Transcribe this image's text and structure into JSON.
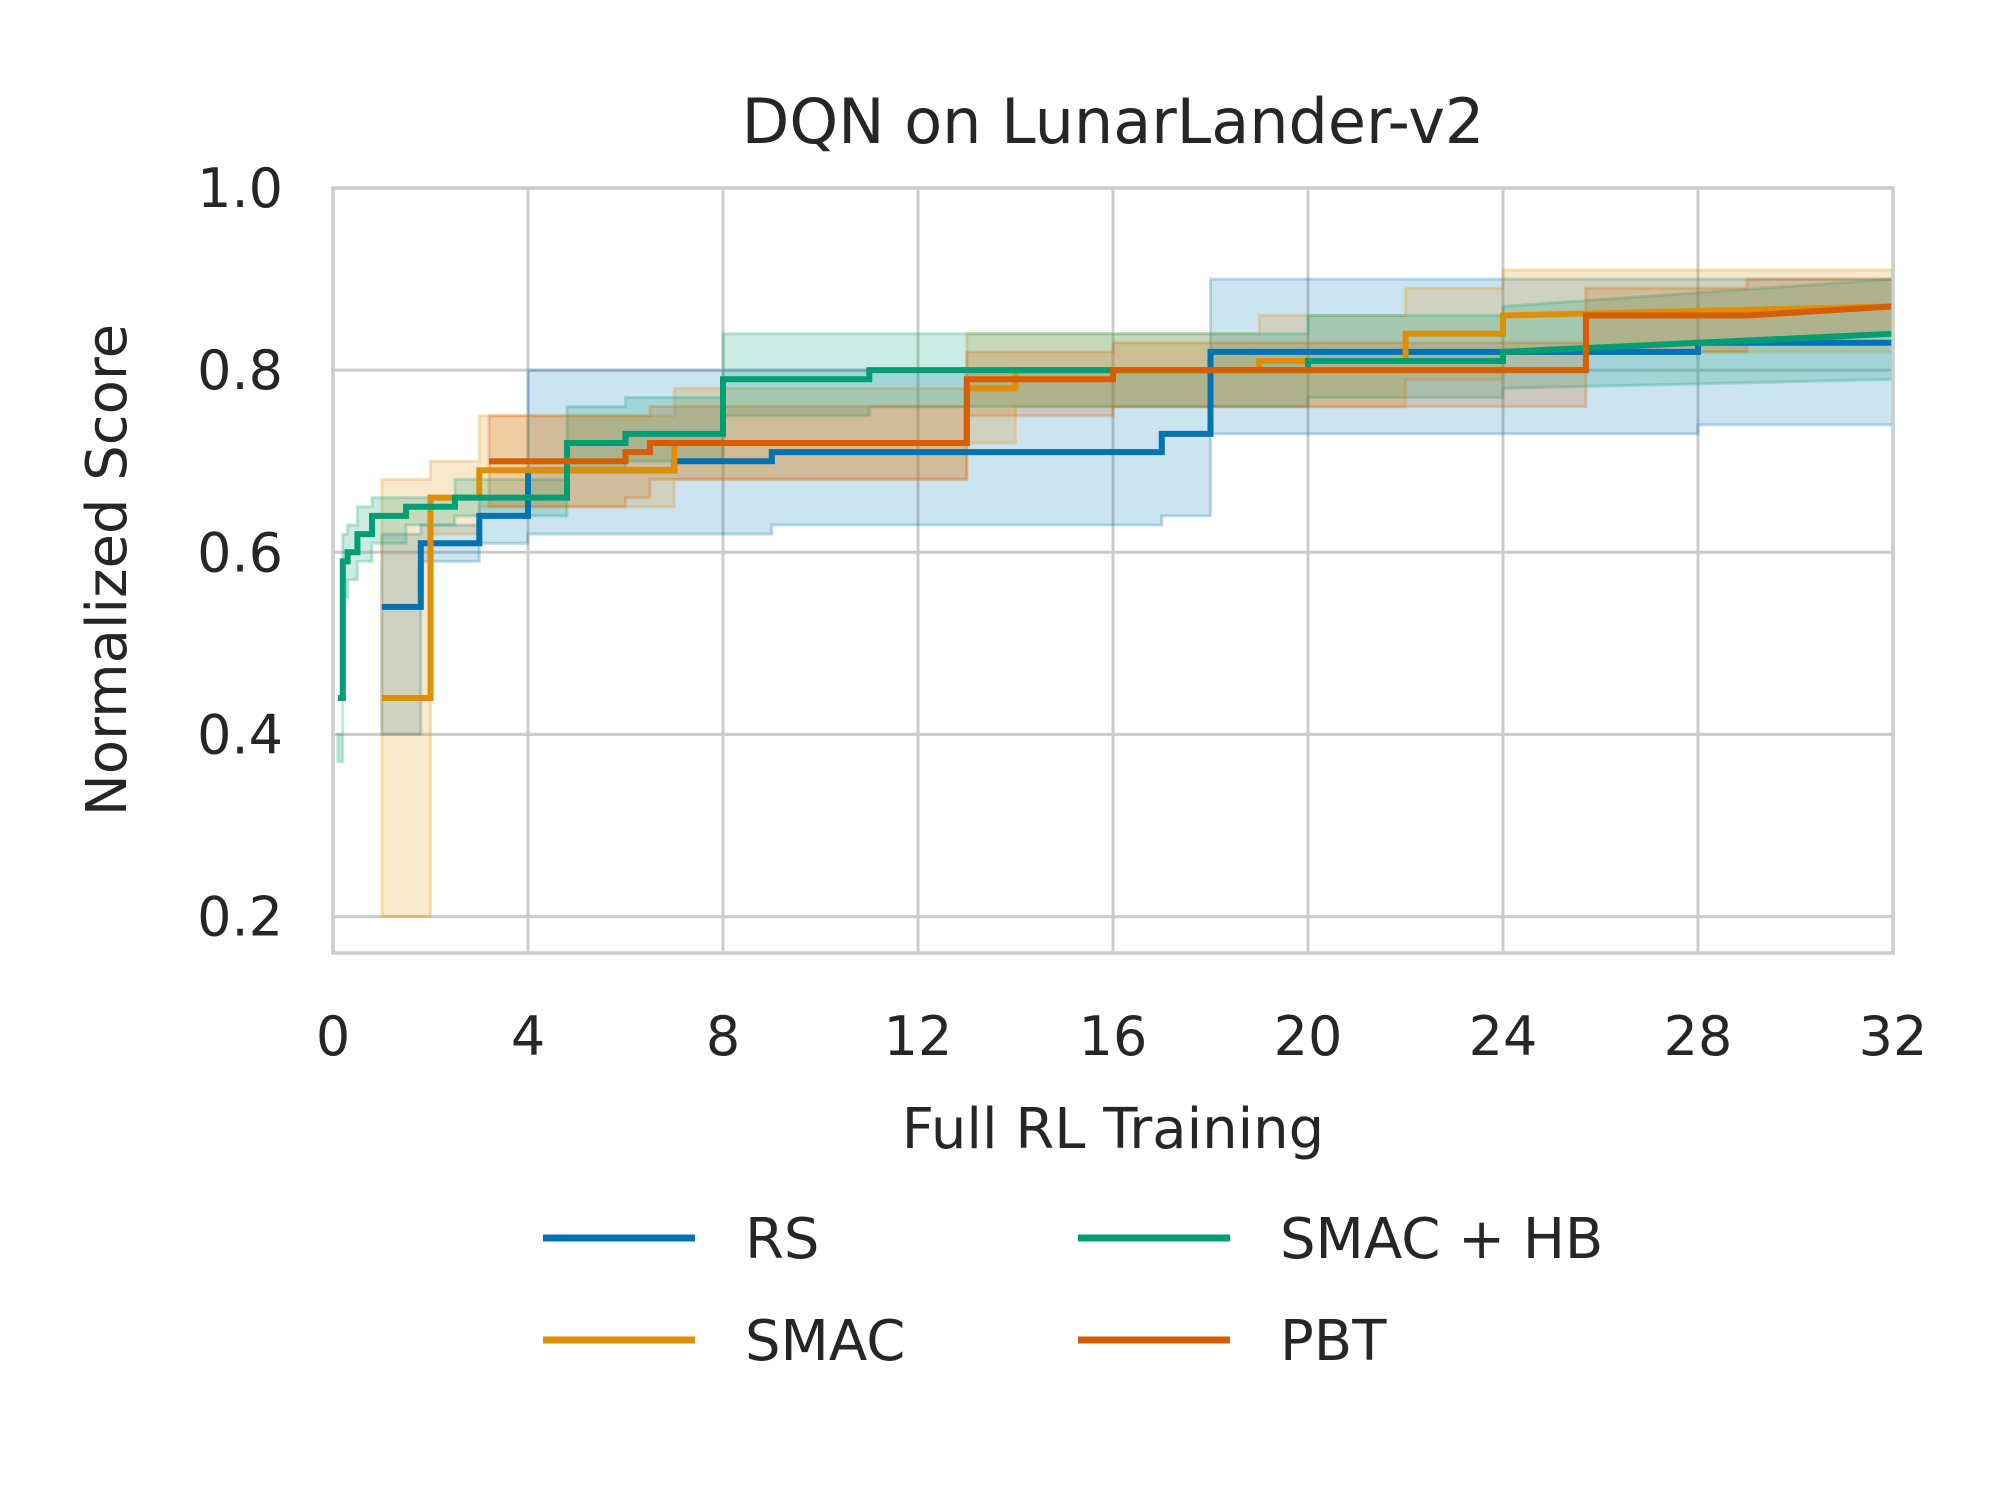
{
  "chart_data": {
    "type": "line",
    "title": "DQN on LunarLander-v2",
    "xlabel": "Full RL Training",
    "ylabel": "Normalized Score",
    "xlim": [
      0,
      32
    ],
    "ylim": [
      0.16,
      1.0
    ],
    "xticks": [
      0,
      4,
      8,
      12,
      16,
      20,
      24,
      28,
      32
    ],
    "xtick_labels": [
      "0",
      "4",
      "8",
      "12",
      "16",
      "20",
      "24",
      "28",
      "32"
    ],
    "yticks": [
      0.2,
      0.4,
      0.6,
      0.8,
      1.0
    ],
    "ytick_labels": [
      "0.2",
      "0.4",
      "0.6",
      "0.8",
      "1.0"
    ],
    "grid": true,
    "legend_position": "bottom-center",
    "series": [
      {
        "name": "RS",
        "color": "#0173b2",
        "x": [
          1,
          1.8,
          1.8,
          3,
          3,
          4,
          4,
          7,
          7,
          9,
          9,
          17,
          17,
          18,
          18,
          28,
          28,
          32
        ],
        "y": [
          0.54,
          0.54,
          0.61,
          0.61,
          0.64,
          0.64,
          0.69,
          0.69,
          0.7,
          0.7,
          0.71,
          0.71,
          0.73,
          0.73,
          0.82,
          0.82,
          0.83,
          0.83
        ],
        "band_upper": [
          0.62,
          0.62,
          0.63,
          0.63,
          0.66,
          0.66,
          0.8,
          0.8,
          0.8,
          0.8,
          0.8,
          0.8,
          0.8,
          0.8,
          0.9,
          0.9,
          0.9,
          0.9
        ],
        "band_lower": [
          0.4,
          0.4,
          0.59,
          0.59,
          0.61,
          0.61,
          0.62,
          0.62,
          0.62,
          0.62,
          0.63,
          0.63,
          0.64,
          0.64,
          0.73,
          0.73,
          0.74,
          0.74
        ]
      },
      {
        "name": "SMAC",
        "color": "#de8f05",
        "x": [
          1,
          2,
          2,
          3,
          3,
          7,
          7,
          13,
          13,
          14,
          14,
          19,
          19,
          22,
          22,
          24,
          24,
          32
        ],
        "y": [
          0.44,
          0.44,
          0.66,
          0.66,
          0.69,
          0.69,
          0.72,
          0.72,
          0.78,
          0.78,
          0.8,
          0.8,
          0.81,
          0.81,
          0.84,
          0.84,
          0.86,
          0.87
        ],
        "band_upper": [
          0.68,
          0.68,
          0.7,
          0.7,
          0.75,
          0.75,
          0.78,
          0.78,
          0.84,
          0.84,
          0.84,
          0.84,
          0.86,
          0.86,
          0.89,
          0.89,
          0.91,
          0.91
        ],
        "band_lower": [
          0.2,
          0.2,
          0.62,
          0.62,
          0.65,
          0.65,
          0.68,
          0.68,
          0.72,
          0.72,
          0.76,
          0.76,
          0.76,
          0.76,
          0.79,
          0.79,
          0.82,
          0.82
        ]
      },
      {
        "name": "SMAC + HB",
        "color": "#029e73",
        "x": [
          0.1,
          0.2,
          0.2,
          0.3,
          0.3,
          0.5,
          0.5,
          0.8,
          0.8,
          1.5,
          1.5,
          2.5,
          2.5,
          4.8,
          4.8,
          6,
          6,
          8,
          8,
          11,
          11,
          20,
          20,
          24,
          24,
          32
        ],
        "y": [
          0.44,
          0.44,
          0.59,
          0.59,
          0.6,
          0.6,
          0.62,
          0.62,
          0.64,
          0.64,
          0.65,
          0.65,
          0.66,
          0.66,
          0.72,
          0.72,
          0.73,
          0.73,
          0.79,
          0.79,
          0.8,
          0.8,
          0.81,
          0.81,
          0.82,
          0.84
        ],
        "band_upper": [
          0.4,
          0.4,
          0.62,
          0.62,
          0.63,
          0.63,
          0.65,
          0.65,
          0.66,
          0.66,
          0.66,
          0.66,
          0.68,
          0.68,
          0.76,
          0.76,
          0.77,
          0.77,
          0.84,
          0.84,
          0.84,
          0.84,
          0.86,
          0.86,
          0.87,
          0.9
        ],
        "band_lower": [
          0.37,
          0.37,
          0.55,
          0.55,
          0.57,
          0.57,
          0.59,
          0.59,
          0.61,
          0.61,
          0.63,
          0.63,
          0.64,
          0.64,
          0.69,
          0.69,
          0.7,
          0.7,
          0.75,
          0.75,
          0.76,
          0.76,
          0.77,
          0.77,
          0.78,
          0.79
        ]
      },
      {
        "name": "PBT",
        "color": "#d55e00",
        "x": [
          3.2,
          6,
          6,
          6.5,
          6.5,
          13,
          13,
          16,
          16,
          25.7,
          25.7,
          29,
          29,
          32
        ],
        "y": [
          0.7,
          0.7,
          0.71,
          0.71,
          0.72,
          0.72,
          0.79,
          0.79,
          0.8,
          0.8,
          0.86,
          0.86,
          0.86,
          0.87
        ],
        "band_upper": [
          0.75,
          0.75,
          0.75,
          0.75,
          0.76,
          0.76,
          0.82,
          0.82,
          0.83,
          0.83,
          0.89,
          0.89,
          0.9,
          0.9
        ],
        "band_lower": [
          0.65,
          0.65,
          0.66,
          0.66,
          0.68,
          0.68,
          0.75,
          0.75,
          0.76,
          0.76,
          0.82,
          0.82,
          0.83,
          0.84
        ]
      }
    ]
  }
}
